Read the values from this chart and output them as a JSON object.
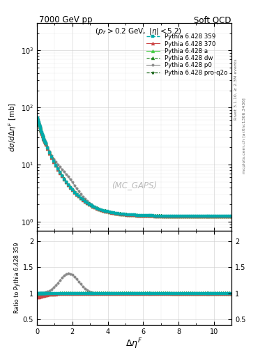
{
  "title_left": "7000 GeV pp",
  "title_right": "Soft QCD",
  "annotation": "$(p_T > 0.2\\ \\mathrm{GeV},\\ |\\eta| < 5.2)$",
  "watermark": "(MC_GAPS)",
  "right_label1": "Rivet 3.1.10, ≥ 2.3M events",
  "right_label2": "mcplots.cern.ch [arXiv:1306.3436]",
  "xlim": [
    0,
    11
  ],
  "ylim_main": [
    0.7,
    3000
  ],
  "ylim_ratio": [
    0.4,
    2.2
  ],
  "yticks_ratio": [
    0.5,
    1.0,
    1.5,
    2.0
  ],
  "xticks": [
    0,
    2,
    4,
    6,
    8,
    10
  ],
  "series": [
    {
      "label": "Pythia 6.428 359",
      "color": "#00aaaa",
      "linestyle": "--",
      "marker": "s",
      "markersize": 2.5,
      "lw": 1.0
    },
    {
      "label": "Pythia 6.428 370",
      "color": "#cc4444",
      "linestyle": "-",
      "marker": "^",
      "markersize": 3.5,
      "lw": 0.8
    },
    {
      "label": "Pythia 6.428 a",
      "color": "#44cc44",
      "linestyle": "-",
      "marker": "^",
      "markersize": 3.5,
      "lw": 0.8
    },
    {
      "label": "Pythia 6.428 dw",
      "color": "#228822",
      "linestyle": "--",
      "marker": "^",
      "markersize": 3.5,
      "lw": 0.8
    },
    {
      "label": "Pythia 6.428 p0",
      "color": "#888888",
      "linestyle": "-",
      "marker": "o",
      "markersize": 2.5,
      "lw": 0.8
    },
    {
      "label": "Pythia 6.428 pro-q2o",
      "color": "#005500",
      "linestyle": "--",
      "marker": "*",
      "markersize": 3.5,
      "lw": 0.8
    }
  ],
  "bg_color": "#ffffff"
}
